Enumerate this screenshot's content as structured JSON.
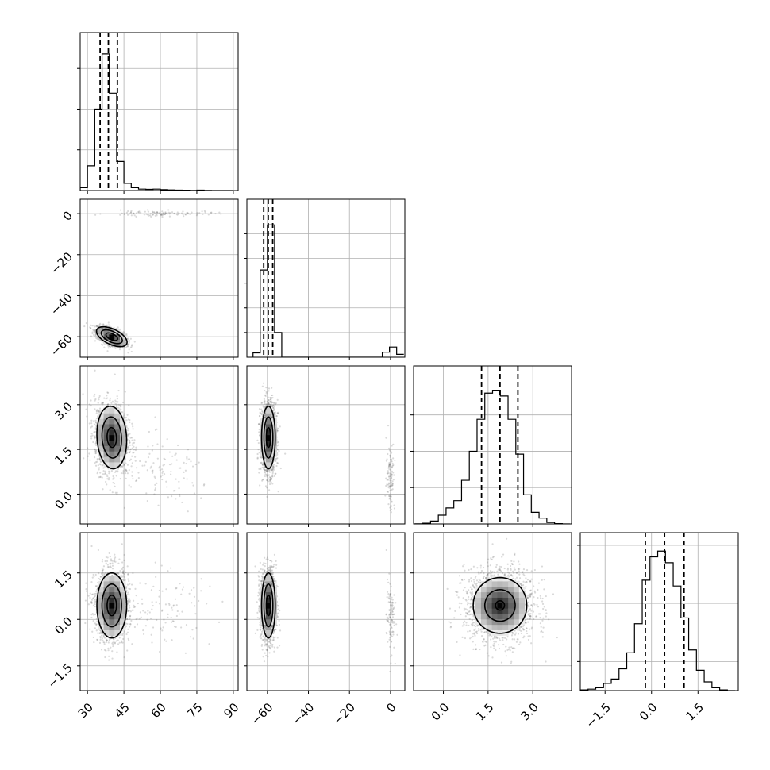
{
  "chart_data": {
    "type": "corner",
    "grid": true,
    "params": [
      {
        "range": [
          27,
          92
        ],
        "ticks": [
          30,
          45,
          60,
          75,
          90
        ],
        "tick_labels": [
          "30",
          "45",
          "60",
          "75",
          "90"
        ],
        "hist": {
          "edges": [
            27,
            30,
            33,
            36,
            39,
            42,
            45,
            48,
            51,
            54,
            57,
            60,
            63,
            66,
            69,
            72,
            75,
            78,
            81,
            84,
            87,
            90
          ],
          "counts": [
            0.02,
            0.17,
            0.56,
            0.94,
            0.67,
            0.2,
            0.05,
            0.02,
            0.01,
            0.008,
            0.01,
            0.006,
            0.004,
            0.003,
            0.002,
            0.001,
            0.003,
            0.001,
            0,
            0,
            0
          ],
          "ymax": 1.0,
          "yticks": [
            0.28,
            0.56,
            0.84
          ],
          "quantiles": [
            35.2,
            38.6,
            42.3
          ]
        }
      },
      {
        "range": [
          -70,
          7
        ],
        "ticks": [
          -60,
          -40,
          -20,
          0
        ],
        "tick_labels": [
          "−60",
          "−40",
          "−20",
          "0"
        ],
        "ticks_y": [
          0,
          -20,
          -40,
          -60
        ],
        "tick_labels_y": [
          "0",
          "−20",
          "−40",
          "−60"
        ],
        "hist": {
          "edges": [
            -67,
            -63.5,
            -60,
            -56.5,
            -53,
            -49.5,
            -46,
            -42.5,
            -39,
            -35.5,
            -32,
            -28.5,
            -25,
            -21.5,
            -18,
            -14.5,
            -11,
            -7.5,
            -4,
            -0.5,
            3,
            6.5
          ],
          "counts": [
            0.03,
            0.6,
            0.91,
            0.17,
            0,
            0,
            0,
            0,
            0,
            0,
            0,
            0,
            0,
            0,
            0,
            0,
            0,
            0,
            0.035,
            0.07,
            0.02
          ],
          "ymax": 1.0,
          "yticks": [
            0.17,
            0.34,
            0.51,
            0.68,
            0.85
          ],
          "quantiles": [
            -61.8,
            -59.6,
            -57.4
          ]
        }
      },
      {
        "range": [
          -1.0,
          4.3
        ],
        "ticks": [
          0.0,
          1.5,
          3.0
        ],
        "tick_labels": [
          "0.0",
          "1.5",
          "3.0"
        ],
        "hist": {
          "edges": [
            -0.95,
            -0.69,
            -0.43,
            -0.17,
            0.09,
            0.35,
            0.61,
            0.87,
            1.13,
            1.39,
            1.65,
            1.91,
            2.17,
            2.43,
            2.69,
            2.95,
            3.21,
            3.47,
            3.73,
            3.99,
            4.25
          ],
          "counts": [
            0.001,
            0.005,
            0.02,
            0.06,
            0.11,
            0.16,
            0.3,
            0.5,
            0.72,
            0.9,
            0.92,
            0.88,
            0.72,
            0.48,
            0.2,
            0.08,
            0.04,
            0.01,
            0.002,
            0
          ],
          "ymax": 1.0,
          "yticks": [
            0.25,
            0.5,
            0.75
          ],
          "quantiles": [
            1.28,
            1.9,
            2.5
          ]
        }
      },
      {
        "range": [
          -2.3,
          2.8
        ],
        "ticks": [
          -1.5,
          0.0,
          1.5
        ],
        "tick_labels": [
          "−1.5",
          "0.0",
          "1.5"
        ],
        "ticks_y": [
          1.5,
          0.0,
          -1.5
        ],
        "tick_labels_y": [
          "1.5",
          "0.0",
          "−1.5"
        ],
        "hist": {
          "edges": [
            -2.3,
            -2.05,
            -1.8,
            -1.55,
            -1.3,
            -1.05,
            -0.8,
            -0.55,
            -0.3,
            -0.05,
            0.2,
            0.45,
            0.7,
            0.95,
            1.2,
            1.45,
            1.7,
            1.95,
            2.2,
            2.45,
            2.7
          ],
          "counts": [
            0.005,
            0.01,
            0.02,
            0.05,
            0.08,
            0.15,
            0.26,
            0.46,
            0.76,
            0.92,
            0.96,
            0.88,
            0.72,
            0.5,
            0.28,
            0.14,
            0.06,
            0.02,
            0.005,
            0
          ],
          "ymax": 1.0,
          "yticks": [
            0.2,
            0.6,
            1.0
          ],
          "quantiles": [
            -0.2,
            0.42,
            1.05
          ]
        }
      }
    ],
    "pairs": [
      {
        "row": 1,
        "col": 0,
        "modes": [
          {
            "cx": 40,
            "cy": -60,
            "sx": 3.0,
            "sy": 2.3,
            "rho": -0.55,
            "n": 1300
          },
          {
            "cx": 60,
            "cy": 0,
            "sx": 11,
            "sy": 0.7,
            "rho": 0,
            "n": 110
          }
        ],
        "contour_center": [
          40,
          -60
        ],
        "contour_cov": [
          [
            9.0,
            -3.8
          ],
          [
            -3.8,
            5.3
          ]
        ],
        "contour_levels": [
          0.8,
          1.45,
          2.1
        ]
      },
      {
        "row": 2,
        "col": 0,
        "modes": [
          {
            "cx": 40,
            "cy": 1.9,
            "sx": 3.5,
            "sy": 0.6,
            "rho": -0.1,
            "n": 1400
          },
          {
            "cx": 62,
            "cy": 0.6,
            "sx": 10,
            "sy": 0.6,
            "rho": 0,
            "n": 110
          }
        ],
        "contour_center": [
          40,
          1.9
        ],
        "contour_cov": [
          [
            12.25,
            -0.21
          ],
          [
            -0.21,
            0.36
          ]
        ],
        "contour_levels": [
          0.55,
          1.15,
          1.75
        ]
      },
      {
        "row": 2,
        "col": 1,
        "modes": [
          {
            "cx": -59.5,
            "cy": 1.9,
            "sx": 1.9,
            "sy": 0.6,
            "rho": 0,
            "n": 1400
          },
          {
            "cx": 0,
            "cy": 0.6,
            "sx": 1.0,
            "sy": 0.6,
            "rho": 0,
            "n": 110
          }
        ],
        "contour_center": [
          -59.5,
          1.9
        ],
        "contour_cov": [
          [
            3.61,
            0
          ],
          [
            0,
            0.36
          ]
        ],
        "contour_levels": [
          0.55,
          1.15,
          1.75
        ]
      },
      {
        "row": 3,
        "col": 0,
        "modes": [
          {
            "cx": 40,
            "cy": 0.45,
            "sx": 3.5,
            "sy": 0.6,
            "rho": 0,
            "n": 1400
          },
          {
            "cx": 62,
            "cy": 0.3,
            "sx": 10,
            "sy": 0.6,
            "rho": 0,
            "n": 110
          }
        ],
        "contour_center": [
          40,
          0.45
        ],
        "contour_cov": [
          [
            12.25,
            0
          ],
          [
            0,
            0.36
          ]
        ],
        "contour_levels": [
          0.55,
          1.15,
          1.75
        ]
      },
      {
        "row": 3,
        "col": 1,
        "modes": [
          {
            "cx": -59.5,
            "cy": 0.45,
            "sx": 1.9,
            "sy": 0.6,
            "rho": 0,
            "n": 1400
          },
          {
            "cx": 0,
            "cy": 0.1,
            "sx": 1.0,
            "sy": 0.6,
            "rho": 0,
            "n": 110
          }
        ],
        "contour_center": [
          -59.5,
          0.45
        ],
        "contour_cov": [
          [
            3.61,
            0
          ],
          [
            0,
            0.36
          ]
        ],
        "contour_levels": [
          0.55,
          1.15,
          1.75
        ]
      },
      {
        "row": 3,
        "col": 2,
        "modes": [
          {
            "cx": 1.9,
            "cy": 0.45,
            "sx": 0.6,
            "sy": 0.6,
            "rho": 0,
            "n": 1600
          }
        ],
        "contour_center": [
          1.9,
          0.45
        ],
        "contour_cov": [
          [
            0.36,
            0
          ],
          [
            0,
            0.36
          ]
        ],
        "contour_levels": [
          0.25,
          0.85,
          1.5
        ]
      }
    ]
  }
}
